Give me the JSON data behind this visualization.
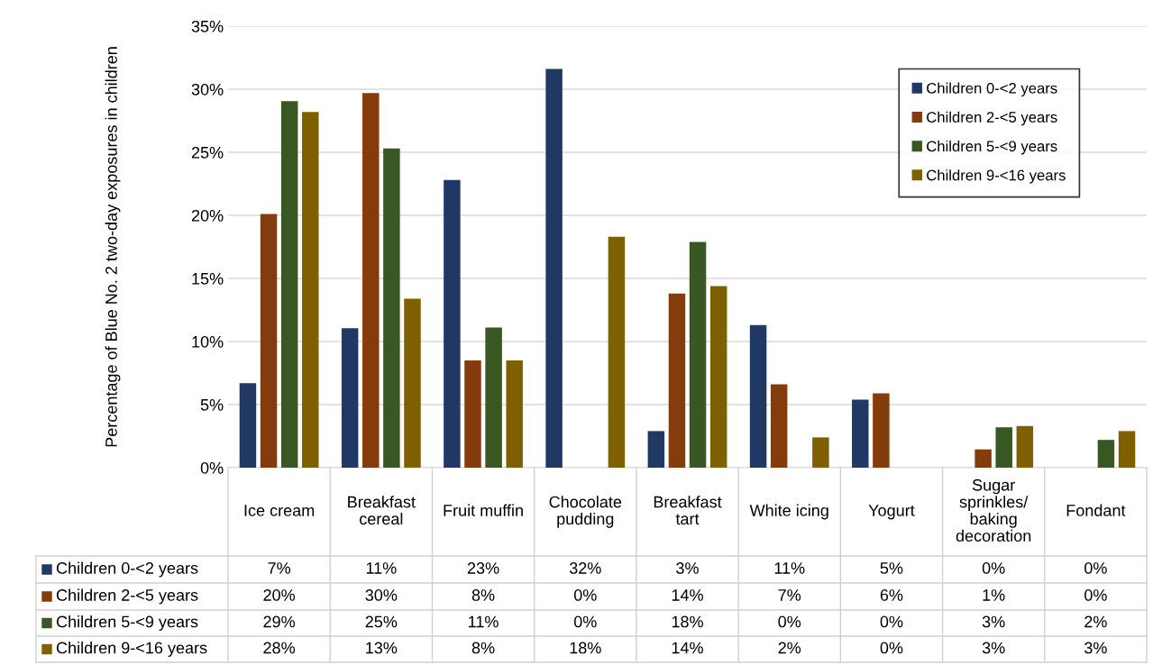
{
  "chart_data": {
    "type": "bar",
    "ylabel": "Percentage of Blue No. 2 two-day exposures in children",
    "categories": [
      "Ice cream",
      "Breakfast\ncereal",
      "Fruit muffin",
      "Chocolate\npudding",
      "Breakfast\ntart",
      "White icing",
      "Yogurt",
      "Sugar\nsprinkles/\nbaking\ndecoration",
      "Fondant"
    ],
    "series": [
      {
        "name": "Children 0-<2 years",
        "color": "#203864",
        "values": [
          6.7,
          11.05,
          22.8,
          31.6,
          2.9,
          11.3,
          5.4,
          0,
          0
        ],
        "value_labels": [
          "7%",
          "11%",
          "23%",
          "32%",
          "3%",
          "11%",
          "5%",
          "0%",
          "0%"
        ]
      },
      {
        "name": "Children 2-<5 years",
        "color": "#843c0c",
        "values": [
          20.1,
          29.7,
          8.5,
          0,
          13.8,
          6.6,
          5.9,
          1.45,
          0
        ],
        "value_labels": [
          "20%",
          "30%",
          "8%",
          "0%",
          "14%",
          "7%",
          "6%",
          "1%",
          "0%"
        ]
      },
      {
        "name": "Children 5-<9 years",
        "color": "#385723",
        "values": [
          29.05,
          25.3,
          11.1,
          0,
          17.9,
          0,
          0,
          3.2,
          2.2
        ],
        "value_labels": [
          "29%",
          "25%",
          "11%",
          "0%",
          "18%",
          "0%",
          "0%",
          "3%",
          "2%"
        ]
      },
      {
        "name": "Children 9-<16 years",
        "color": "#7f6000",
        "values": [
          28.2,
          13.4,
          8.5,
          18.3,
          14.4,
          2.4,
          0,
          3.3,
          2.9
        ],
        "value_labels": [
          "28%",
          "13%",
          "8%",
          "18%",
          "14%",
          "2%",
          "0%",
          "3%",
          "3%"
        ]
      }
    ],
    "ylim": [
      0,
      35
    ],
    "yticks": [
      {
        "value": 0,
        "label": "0%"
      },
      {
        "value": 5,
        "label": "5%"
      },
      {
        "value": 10,
        "label": "10%"
      },
      {
        "value": 15,
        "label": "15%"
      },
      {
        "value": 20,
        "label": "20%"
      },
      {
        "value": 25,
        "label": "25%"
      },
      {
        "value": 30,
        "label": "30%"
      },
      {
        "value": 35,
        "label": "35%"
      }
    ],
    "grid": "y",
    "legend": "top right"
  }
}
